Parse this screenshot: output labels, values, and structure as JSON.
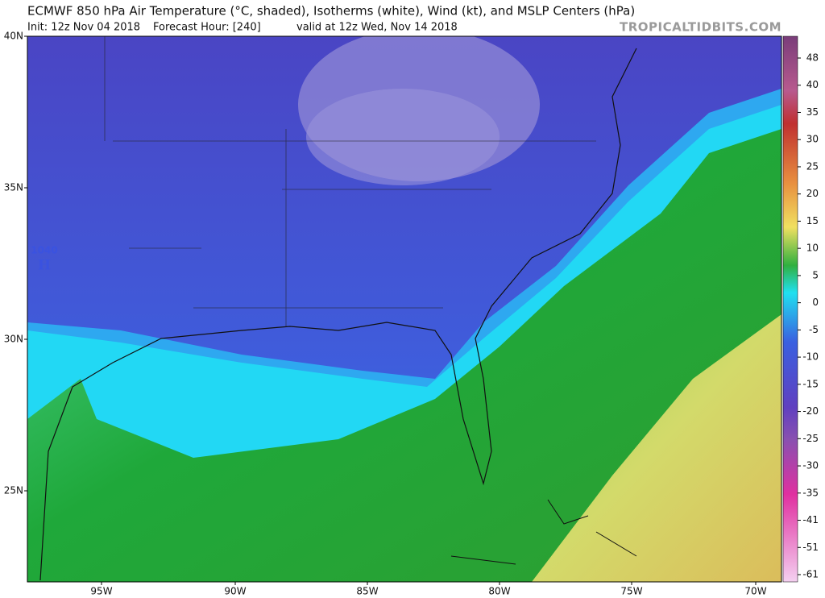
{
  "header": {
    "title": "ECMWF 850 hPa Air Temperature (°C, shaded), Isotherms (white), Wind (kt), and MSLP Centers (hPa)",
    "init": "Init: 12z Nov 04 2018",
    "forecast_hour": "Forecast Hour: [240]",
    "valid": "valid at 12z Wed, Nov 14 2018",
    "brand": "TROPICALTIDBITS.COM"
  },
  "map": {
    "lat_labels": [
      "40N",
      "35N",
      "30N",
      "25N"
    ],
    "lon_labels": [
      "95W",
      "90W",
      "85W",
      "80W",
      "75W",
      "70W"
    ],
    "pressure_center": {
      "value": 1040,
      "label": "H"
    }
  },
  "colorbar": {
    "ticks": [
      48,
      40,
      35,
      30,
      25,
      20,
      15,
      10,
      5,
      0,
      -5,
      -10,
      -15,
      -20,
      -25,
      -30,
      -35,
      -41,
      -51,
      -61
    ]
  }
}
